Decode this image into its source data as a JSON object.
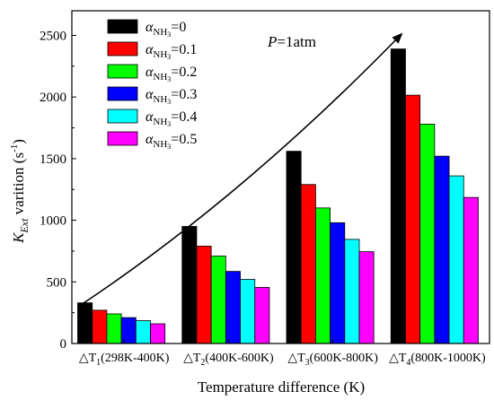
{
  "chart_data": {
    "type": "bar",
    "xlabel": "Temperature difference (K)",
    "ylabel": {
      "main": "K",
      "sub": "Ext",
      "rest": " varition (s",
      "sup": "-1",
      "close": ")"
    },
    "ylim": [
      0,
      2700
    ],
    "yticks": [
      0,
      500,
      1000,
      1500,
      2000,
      2500
    ],
    "legend_position": "top-left",
    "annotation": {
      "prefix": "P",
      "suffix": "=1atm"
    },
    "categories": [
      {
        "delta": "△T",
        "sub": "1",
        "range": "(298K-400K)"
      },
      {
        "delta": "△T",
        "sub": "2",
        "range": "(400K-600K)"
      },
      {
        "delta": "△T",
        "sub": "3",
        "range": "(600K-800K)"
      },
      {
        "delta": "△T",
        "sub": "4",
        "range": "(800K-1000K)"
      }
    ],
    "series": [
      {
        "name_symbol": "α",
        "name_sub": "NH",
        "name_subsub": "3",
        "name_value": "=0",
        "color": "#000000",
        "values": [
          330,
          950,
          1560,
          2390
        ]
      },
      {
        "name_symbol": "α",
        "name_sub": "NH",
        "name_subsub": "3",
        "name_value": "=0.1",
        "color": "#ff0000",
        "values": [
          270,
          790,
          1290,
          2015
        ]
      },
      {
        "name_symbol": "α",
        "name_sub": "NH",
        "name_subsub": "3",
        "name_value": "=0.2",
        "color": "#00ff00",
        "values": [
          240,
          710,
          1100,
          1780
        ]
      },
      {
        "name_symbol": "α",
        "name_sub": "NH",
        "name_subsub": "3",
        "name_value": "=0.3",
        "color": "#0000ff",
        "values": [
          210,
          585,
          980,
          1520
        ]
      },
      {
        "name_symbol": "α",
        "name_sub": "NH",
        "name_subsub": "3",
        "name_value": "=0.4",
        "color": "#00ffff",
        "values": [
          185,
          520,
          845,
          1360
        ]
      },
      {
        "name_symbol": "α",
        "name_sub": "NH",
        "name_subsub": "3",
        "name_value": "=0.5",
        "color": "#ff00ff",
        "values": [
          160,
          455,
          745,
          1185
        ]
      }
    ]
  }
}
